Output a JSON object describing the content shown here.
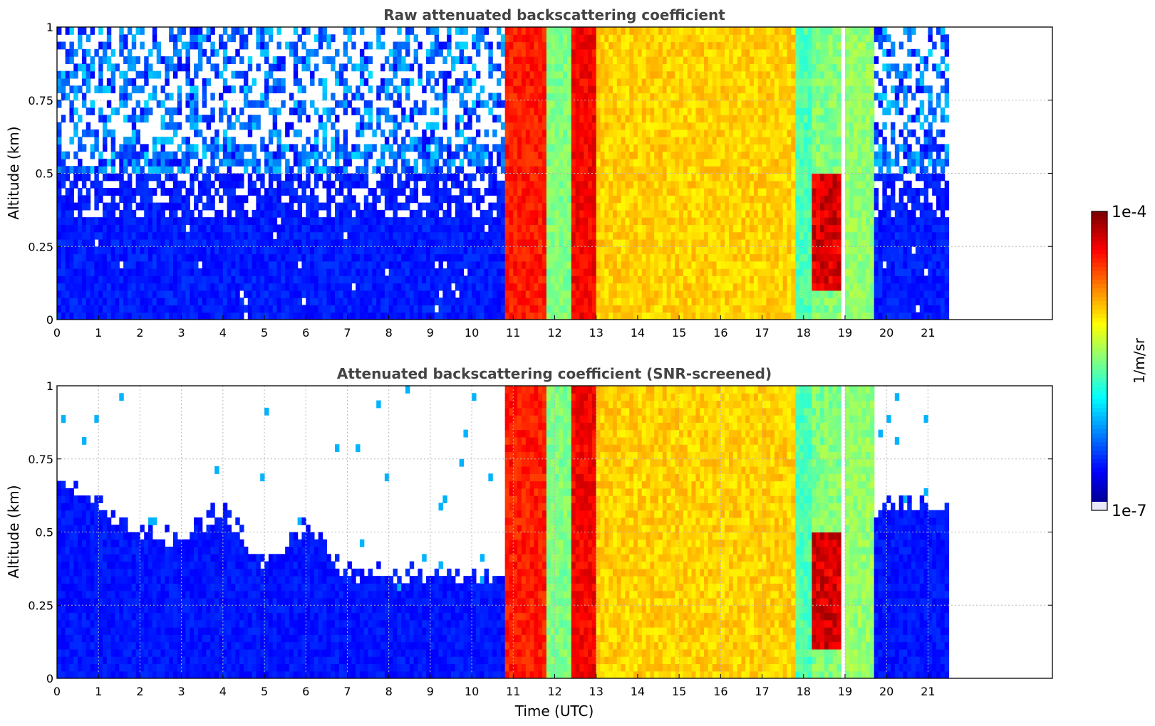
{
  "chart_data": [
    {
      "type": "heatmap",
      "title": "Raw attenuated backscattering coefficient",
      "xlabel": "",
      "ylabel": "Altitude (km)",
      "xlim": [
        0,
        24
      ],
      "ylim": [
        0,
        1
      ],
      "x_ticks": [
        0,
        1,
        2,
        3,
        4,
        5,
        6,
        7,
        8,
        9,
        10,
        11,
        12,
        13,
        14,
        15,
        16,
        17,
        18,
        19,
        20,
        21
      ],
      "y_ticks": [
        0,
        0.25,
        0.5,
        0.75,
        1
      ],
      "y_tick_labels": [
        "0",
        "0.25",
        "0.5",
        "0.75",
        "1"
      ],
      "grid": true,
      "data_end_time": 21.5,
      "features": [
        {
          "t0": 0,
          "t1": 10.8,
          "kind": "clear-sky noise",
          "level": 0.14,
          "noise_top": 1.0
        },
        {
          "t0": 10.8,
          "t1": 11.8,
          "kind": "dense cloud/fog",
          "level": 0.85
        },
        {
          "t0": 11.8,
          "t1": 12.4,
          "kind": "thin cloud",
          "level": 0.5
        },
        {
          "t0": 12.4,
          "t1": 13.0,
          "kind": "dense cloud/fog",
          "level": 0.88
        },
        {
          "t0": 13.0,
          "t1": 17.8,
          "kind": "cloud/fog",
          "level": 0.67
        },
        {
          "t0": 17.8,
          "t1": 18.2,
          "kind": "thin cloud",
          "level": 0.45
        },
        {
          "t0": 18.2,
          "t1": 18.9,
          "kind": "cloud layer 0.1-0.5 km",
          "level": 0.9
        },
        {
          "t0": 19.0,
          "t1": 19.7,
          "kind": "cloud/fog",
          "level": 0.52
        },
        {
          "t0": 19.7,
          "t1": 21.5,
          "kind": "clear-sky noise",
          "level": 0.14,
          "noise_top": 1.0
        }
      ]
    },
    {
      "type": "heatmap",
      "title": "Attenuated backscattering coefficient (SNR-screened)",
      "xlabel": "Time (UTC)",
      "ylabel": "Altitude (km)",
      "xlim": [
        0,
        24
      ],
      "ylim": [
        0,
        1
      ],
      "x_ticks": [
        0,
        1,
        2,
        3,
        4,
        5,
        6,
        7,
        8,
        9,
        10,
        11,
        12,
        13,
        14,
        15,
        16,
        17,
        18,
        19,
        20,
        21
      ],
      "y_ticks": [
        0,
        0.25,
        0.5,
        0.75,
        1
      ],
      "y_tick_labels": [
        "0",
        "0.25",
        "0.5",
        "0.75",
        "1"
      ],
      "grid": true,
      "data_end_time": 21.5,
      "boundary_layer_top_km": [
        {
          "t": 0,
          "h": 0.68
        },
        {
          "t": 1,
          "h": 0.6
        },
        {
          "t": 2,
          "h": 0.5
        },
        {
          "t": 3,
          "h": 0.48
        },
        {
          "t": 4,
          "h": 0.58
        },
        {
          "t": 5,
          "h": 0.38
        },
        {
          "t": 6,
          "h": 0.52
        },
        {
          "t": 7,
          "h": 0.36
        },
        {
          "t": 8,
          "h": 0.35
        },
        {
          "t": 9,
          "h": 0.35
        },
        {
          "t": 10,
          "h": 0.35
        },
        {
          "t": 19.7,
          "h": 0.58
        },
        {
          "t": 21.5,
          "h": 0.6
        }
      ]
    }
  ],
  "colorbar": {
    "label": "1/m/sr",
    "max_label": "1e-4",
    "min_label": "1e-7",
    "colormap": "jet",
    "low_color": "#e8e8f8"
  }
}
